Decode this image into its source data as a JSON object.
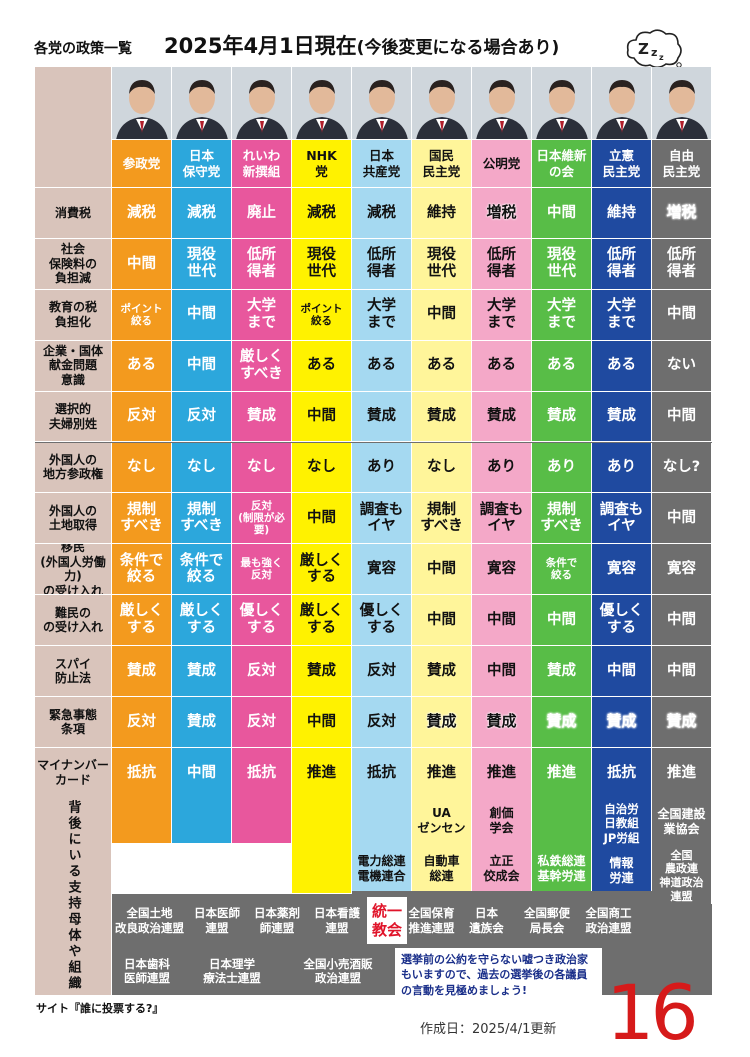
{
  "header": {
    "left_title": "各党の政策一覧",
    "main_title": "2025年4月1日現在",
    "main_sub": "(今後変更になる場合あり)"
  },
  "colors": {
    "label_bg": "#d9c4bb",
    "grid_bg": "#6e6e6e"
  },
  "parties": [
    {
      "name": "参政党",
      "bg": "#f39a1e",
      "fg": "#ffffff"
    },
    {
      "name": "日本\n保守党",
      "bg": "#2ca7dc",
      "fg": "#ffffff"
    },
    {
      "name": "れいわ\n新撰組",
      "bg": "#e8579d",
      "fg": "#ffffff"
    },
    {
      "name": "NHK\n党",
      "bg": "#fff200",
      "fg": "#111111"
    },
    {
      "name": "日本\n共産党",
      "bg": "#a5d9f1",
      "fg": "#111111"
    },
    {
      "name": "国民\n民主党",
      "bg": "#fff59a",
      "fg": "#111111"
    },
    {
      "name": "公明党",
      "bg": "#f4a8c8",
      "fg": "#111111"
    },
    {
      "name": "日本維新\nの会",
      "bg": "#58bd47",
      "fg": "#ffffff"
    },
    {
      "name": "立憲\n民主党",
      "bg": "#1f4aa0",
      "fg": "#ffffff"
    },
    {
      "name": "自由\n民主党",
      "bg": "#6e6e6e",
      "fg": "#ffffff"
    }
  ],
  "rows": [
    {
      "label": "消費税",
      "values": [
        "減税",
        "減税",
        "廃止",
        "減税",
        "減税",
        "維持",
        "増税",
        "中間",
        "維持",
        "増税"
      ]
    },
    {
      "label": "社会\n保険料の\n負担減",
      "values": [
        "中間",
        "現役\n世代",
        "低所\n得者",
        "現役\n世代",
        "低所\n得者",
        "現役\n世代",
        "低所\n得者",
        "現役\n世代",
        "低所\n得者",
        "低所\n得者"
      ]
    },
    {
      "label": "教育の税\n負担化",
      "values": [
        "ポイント\n絞る",
        "中間",
        "大学\nまで",
        "ポイント\n絞る",
        "大学\nまで",
        "中間",
        "大学\nまで",
        "大学\nまで",
        "大学\nまで",
        "中間"
      ]
    },
    {
      "label": "企業・国体\n献金問題\n意識",
      "values": [
        "ある",
        "中間",
        "厳しく\nすべき",
        "ある",
        "ある",
        "ある",
        "ある",
        "ある",
        "ある",
        "ない"
      ]
    },
    {
      "label": "選択的\n夫婦別姓",
      "values": [
        "反対",
        "反対",
        "賛成",
        "中間",
        "賛成",
        "賛成",
        "賛成",
        "賛成",
        "賛成",
        "中間"
      ]
    },
    {
      "label": "外国人の\n地方参政権",
      "values": [
        "なし",
        "なし",
        "なし",
        "なし",
        "あり",
        "なし",
        "あり",
        "あり",
        "あり",
        "なし?"
      ]
    },
    {
      "label": "外国人の\n土地取得",
      "values": [
        "規制\nすべき",
        "規制\nすべき",
        "反対\n(制限が必要)",
        "中間",
        "調査も\nイヤ",
        "規制\nすべき",
        "調査も\nイヤ",
        "規制\nすべき",
        "調査も\nイヤ",
        "中間"
      ]
    },
    {
      "label": "移民\n(外国人労働力)\nの受け入れ",
      "values": [
        "条件で\n絞る",
        "条件で\n絞る",
        "最も強く\n反対",
        "厳しく\nする",
        "寛容",
        "中間",
        "寛容",
        "条件で\n絞る",
        "寛容",
        "寛容"
      ]
    },
    {
      "label": "難民の\nの受け入れ",
      "values": [
        "厳しく\nする",
        "厳しく\nする",
        "優しく\nする",
        "厳しく\nする",
        "優しく\nする",
        "中間",
        "中間",
        "中間",
        "優しく\nする",
        "中間"
      ]
    },
    {
      "label": "スパイ\n防止法",
      "values": [
        "賛成",
        "賛成",
        "反対",
        "賛成",
        "反対",
        "賛成",
        "中間",
        "賛成",
        "中間",
        "中間"
      ]
    },
    {
      "label": "緊急事態\n条項",
      "values": [
        "反対",
        "賛成",
        "反対",
        "中間",
        "反対",
        "賛成",
        "賛成",
        "賛成",
        "賛成",
        "賛成"
      ]
    },
    {
      "label": "マイナンバー\nカード",
      "values": [
        "抵抗",
        "中間",
        "抵抗",
        "推進",
        "抵抗",
        "推進",
        "推進",
        "推進",
        "抵抗",
        "推進"
      ]
    }
  ],
  "support": {
    "label": "背後にいる支持母体や組織",
    "top_orgs": [
      {
        "col": 5,
        "text": "UA\nゼンセン"
      },
      {
        "col": 6,
        "text": "創価\n学会"
      },
      {
        "col": 8,
        "text": "自治労\n日教組\nJP労組"
      },
      {
        "col": 9,
        "text": "全国建設\n業協会"
      }
    ],
    "mid_orgs": [
      {
        "col": 4,
        "text": "電力総連\n電機連合"
      },
      {
        "col": 5,
        "text": "自動車\n総連"
      },
      {
        "col": 6,
        "text": "立正\n佼成会"
      },
      {
        "col": 7,
        "text": "私鉄総連\n基幹労連"
      },
      {
        "col": 8,
        "text": "情報\n労連"
      },
      {
        "col": 9,
        "text": "全国\n農政連\n神道政治\n連盟"
      }
    ],
    "ldp_row1": [
      "全国土地\n改良政治連盟",
      "日本医師\n連盟",
      "日本薬剤\n師連盟",
      "日本看護\n連盟",
      "統一\n教会",
      "全国保育\n推進連盟",
      "日本\n遺族会",
      "全国郵便\n局長会",
      "全国商工\n政治連盟"
    ],
    "ldp_row2": [
      "日本歯科\n医師連盟",
      "日本理学\n療法士連盟",
      "全国小売酒販\n政治連盟"
    ]
  },
  "note": "選挙前の公約を守らない嘘つき政治家もいますので、過去の選挙後の各議員の言動を見極めましょう!",
  "footer": {
    "site": "サイト『誰に投票する?』",
    "created": "作成日：2025/4/1更新",
    "page_number": "16"
  }
}
